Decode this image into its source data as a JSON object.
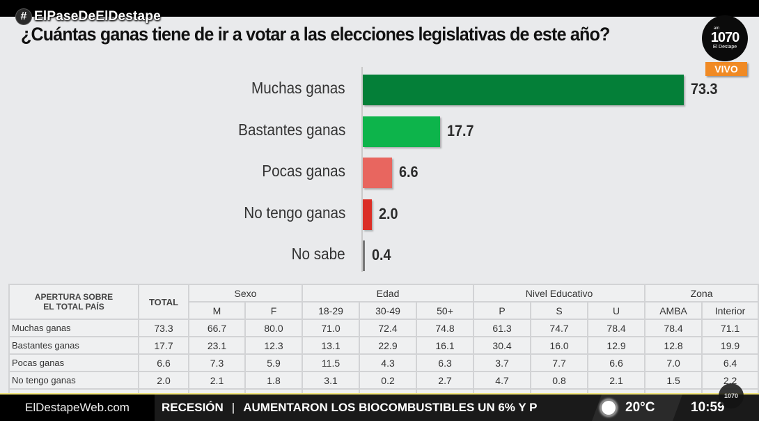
{
  "overlay": {
    "hashtag_symbol": "#",
    "hashtag": "ElPaseDeElDestape",
    "logo_am": "am",
    "logo_number": "1070",
    "logo_name": "El Destape",
    "live_badge": "VIVO"
  },
  "chart_data": {
    "type": "bar",
    "orientation": "horizontal",
    "title": "¿Cuántas ganas tiene de ir a votar a las elecciones legislativas de este año?",
    "categories": [
      "Muchas ganas",
      "Bastantes ganas",
      "Pocas ganas",
      "No tengo ganas",
      "No sabe"
    ],
    "values": [
      73.3,
      17.7,
      6.6,
      2.0,
      0.4
    ],
    "value_labels": [
      "73.3",
      "17.7",
      "6.6",
      "2.0",
      "0.4"
    ],
    "colors": [
      "#047f38",
      "#0db44b",
      "#e8665f",
      "#db2e26",
      "#777777"
    ],
    "xlabel": "",
    "ylabel": "",
    "xlim": [
      0,
      73.3
    ],
    "grid": false,
    "legend": "none"
  },
  "table": {
    "corner_header": [
      "APERTURA SOBRE",
      "EL TOTAL PAÍS"
    ],
    "total_header": "TOTAL",
    "groups": [
      {
        "label": "Sexo",
        "columns": [
          "M",
          "F"
        ]
      },
      {
        "label": "Edad",
        "columns": [
          "18-29",
          "30-49",
          "50+"
        ]
      },
      {
        "label": "Nivel Educativo",
        "columns": [
          "P",
          "S",
          "U"
        ]
      },
      {
        "label": "Zona",
        "columns": [
          "AMBA",
          "Interior"
        ]
      }
    ],
    "rows": [
      {
        "label": "Muchas ganas",
        "values": [
          "73.3",
          "66.7",
          "80.0",
          "71.0",
          "72.4",
          "74.8",
          "61.3",
          "74.7",
          "78.4",
          "78.4",
          "71.1"
        ]
      },
      {
        "label": "Bastantes ganas",
        "values": [
          "17.7",
          "23.1",
          "12.3",
          "13.1",
          "22.9",
          "16.1",
          "30.4",
          "16.0",
          "12.9",
          "12.8",
          "19.9"
        ]
      },
      {
        "label": "Pocas ganas",
        "values": [
          "6.6",
          "7.3",
          "5.9",
          "11.5",
          "4.3",
          "6.3",
          "3.7",
          "7.7",
          "6.6",
          "7.0",
          "6.4"
        ]
      },
      {
        "label": "No tengo ganas",
        "values": [
          "2.0",
          "2.1",
          "1.8",
          "3.1",
          "0.2",
          "2.7",
          "4.7",
          "0.8",
          "2.1",
          "1.5",
          "2.2"
        ]
      }
    ]
  },
  "ticker": {
    "site": "ElDestapeWeb.com",
    "headline_1": "RECESIÓN",
    "separator": "|",
    "headline_2": "AUMENTARON LOS BIOCOMBUSTIBLES UN 6% Y P",
    "weather_icon": "sun-icon",
    "temperature": "20°C",
    "time": "10:59",
    "mini_logo": "1070"
  }
}
